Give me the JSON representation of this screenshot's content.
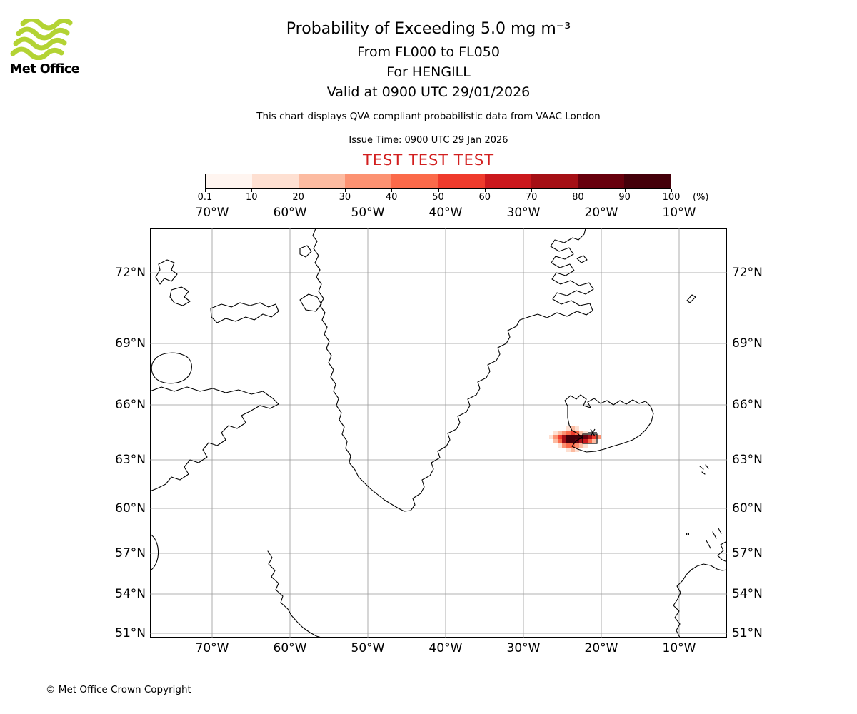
{
  "logo": {
    "brand": "Met Office",
    "wave_color": "#b3d334"
  },
  "header": {
    "title": "Probability of Exceeding 5.0 mg m⁻³",
    "subtitle_flight_levels": "From FL000 to FL050",
    "subtitle_location": "For HENGILL",
    "subtitle_valid": "Valid at 0900 UTC 29/01/2026",
    "qva_note": "This chart displays QVA compliant probabilistic data from VAAC London",
    "issue_time": "Issue Time: 0900 UTC 29 Jan 2026",
    "test_banner": "TEST TEST TEST",
    "test_banner_color": "#d21f1f"
  },
  "colorbar": {
    "unit_label": "(%)"
  },
  "chart_data": {
    "type": "heatmap",
    "title": "Probability of Exceeding 5.0 mg m⁻³ from FL000 to FL050 for HENGILL, valid at 0900 UTC 29/01/2026",
    "legend_percent_levels": [
      "0.1",
      "10",
      "20",
      "30",
      "40",
      "50",
      "60",
      "70",
      "80",
      "90",
      "100"
    ],
    "colors": [
      "#fff5f0",
      "#fee0d2",
      "#fcbba1",
      "#fc9272",
      "#fb6a4a",
      "#ef3b2c",
      "#cb181d",
      "#a50f15",
      "#67000d",
      "#44000a"
    ],
    "x_tick_labels": [
      "70°W",
      "60°W",
      "50°W",
      "40°W",
      "30°W",
      "20°W",
      "10°W"
    ],
    "y_tick_labels": [
      "72°N",
      "69°N",
      "66°N",
      "63°N",
      "60°N",
      "57°N",
      "54°N",
      "51°N"
    ],
    "cell_size_px": 6,
    "cells": [
      [
        583,
        277,
        1
      ],
      [
        589,
        277,
        2
      ],
      [
        595,
        277,
        1
      ],
      [
        565,
        283,
        1
      ],
      [
        571,
        283,
        2
      ],
      [
        577,
        283,
        3
      ],
      [
        583,
        283,
        4
      ],
      [
        589,
        283,
        5
      ],
      [
        595,
        283,
        4
      ],
      [
        601,
        283,
        2
      ],
      [
        607,
        283,
        1
      ],
      [
        559,
        289,
        1
      ],
      [
        565,
        289,
        3
      ],
      [
        571,
        289,
        5
      ],
      [
        577,
        289,
        7
      ],
      [
        583,
        289,
        9
      ],
      [
        589,
        289,
        9
      ],
      [
        595,
        289,
        9
      ],
      [
        601,
        289,
        9
      ],
      [
        607,
        289,
        8
      ],
      [
        613,
        289,
        7
      ],
      [
        619,
        289,
        5
      ],
      [
        625,
        289,
        3
      ],
      [
        565,
        295,
        2
      ],
      [
        571,
        295,
        4
      ],
      [
        577,
        295,
        7
      ],
      [
        583,
        295,
        9
      ],
      [
        589,
        295,
        9
      ],
      [
        595,
        295,
        8
      ],
      [
        601,
        295,
        7
      ],
      [
        607,
        295,
        6
      ],
      [
        613,
        295,
        4
      ],
      [
        619,
        295,
        2
      ],
      [
        571,
        301,
        1
      ],
      [
        577,
        301,
        3
      ],
      [
        583,
        301,
        4
      ],
      [
        589,
        301,
        4
      ],
      [
        595,
        301,
        3
      ],
      [
        601,
        301,
        2
      ],
      [
        607,
        301,
        1
      ],
      [
        583,
        307,
        1
      ],
      [
        589,
        307,
        2
      ],
      [
        595,
        307,
        1
      ]
    ]
  },
  "footer": {
    "copyright": "© Met Office Crown Copyright"
  }
}
